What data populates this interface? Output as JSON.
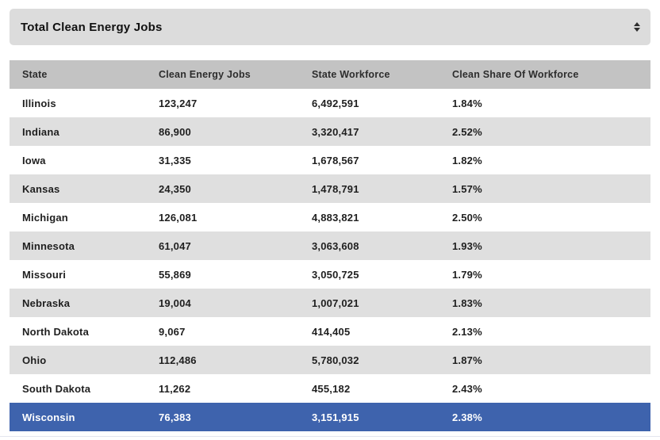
{
  "dropdown": {
    "selected": "Total Clean Energy Jobs",
    "icon": "up-down-stepper"
  },
  "table": {
    "columns": [
      "State",
      "Clean Energy Jobs",
      "State Workforce",
      "Clean Share Of Workforce"
    ],
    "rows": [
      {
        "state": "Illinois",
        "jobs": "123,247",
        "workforce": "6,492,591",
        "share": "1.84%",
        "highlighted": false
      },
      {
        "state": "Indiana",
        "jobs": "86,900",
        "workforce": "3,320,417",
        "share": "2.52%",
        "highlighted": false
      },
      {
        "state": "Iowa",
        "jobs": "31,335",
        "workforce": "1,678,567",
        "share": "1.82%",
        "highlighted": false
      },
      {
        "state": "Kansas",
        "jobs": "24,350",
        "workforce": "1,478,791",
        "share": "1.57%",
        "highlighted": false
      },
      {
        "state": "Michigan",
        "jobs": "126,081",
        "workforce": "4,883,821",
        "share": "2.50%",
        "highlighted": false
      },
      {
        "state": "Minnesota",
        "jobs": "61,047",
        "workforce": "3,063,608",
        "share": "1.93%",
        "highlighted": false
      },
      {
        "state": "Missouri",
        "jobs": "55,869",
        "workforce": "3,050,725",
        "share": "1.79%",
        "highlighted": false
      },
      {
        "state": "Nebraska",
        "jobs": "19,004",
        "workforce": "1,007,021",
        "share": "1.83%",
        "highlighted": false
      },
      {
        "state": "North Dakota",
        "jobs": "9,067",
        "workforce": "414,405",
        "share": "2.13%",
        "highlighted": false
      },
      {
        "state": "Ohio",
        "jobs": "112,486",
        "workforce": "5,780,032",
        "share": "1.87%",
        "highlighted": false
      },
      {
        "state": "South Dakota",
        "jobs": "11,262",
        "workforce": "455,182",
        "share": "2.43%",
        "highlighted": false
      },
      {
        "state": "Wisconsin",
        "jobs": "76,383",
        "workforce": "3,151,915",
        "share": "2.38%",
        "highlighted": true
      }
    ]
  },
  "colors": {
    "highlight_row": "#3e63ad",
    "header_bg": "#c3c3c3",
    "stripe_bg": "#dfdfdf",
    "dropdown_bg": "#dcdcdc",
    "text": "#1f1f1f"
  }
}
